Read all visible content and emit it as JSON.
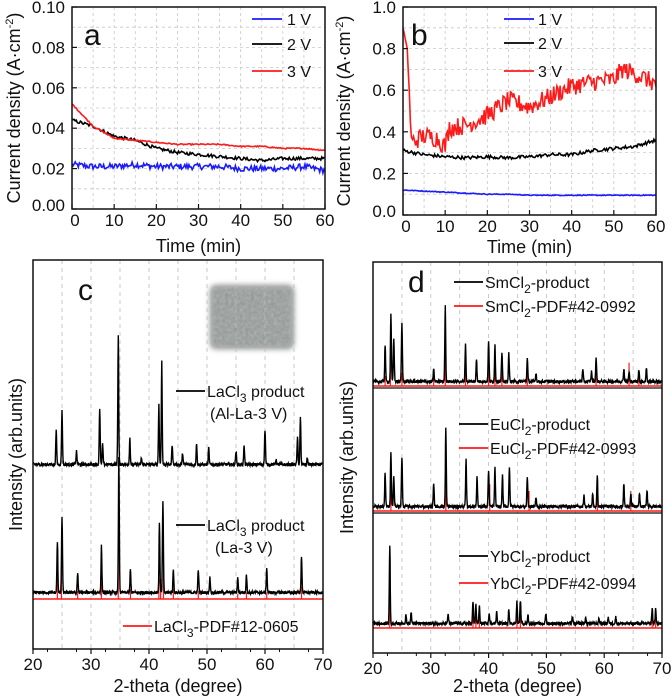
{
  "chart_data": [
    {
      "panel": "a",
      "type": "line",
      "xlabel": "Time (min)",
      "ylabel": "Current density (A·cm⁻²)",
      "ylabel_parts": {
        "main": "Current density (A·cm",
        "sup": "-2",
        "end": ")"
      },
      "xlim": [
        0,
        60
      ],
      "ylim": [
        0,
        0.1
      ],
      "xticks": [
        "0",
        "10",
        "20",
        "30",
        "40",
        "50",
        "60"
      ],
      "yticks": [
        "0.00",
        "0.02",
        "0.04",
        "0.06",
        "0.08",
        "0.10"
      ],
      "grid": true,
      "legend_position": "top-right",
      "x": [
        0,
        5,
        10,
        15,
        20,
        25,
        30,
        35,
        40,
        45,
        50,
        55,
        60
      ],
      "series": [
        {
          "name": "1 V",
          "color": "#1a1aff",
          "values": [
            0.022,
            0.021,
            0.021,
            0.022,
            0.021,
            0.021,
            0.021,
            0.021,
            0.02,
            0.02,
            0.02,
            0.021,
            0.019
          ]
        },
        {
          "name": "2 V",
          "color": "#000000",
          "values": [
            0.044,
            0.041,
            0.036,
            0.034,
            0.03,
            0.028,
            0.027,
            0.026,
            0.025,
            0.024,
            0.025,
            0.025,
            0.025
          ]
        },
        {
          "name": "3 V",
          "color": "#ff1a1a",
          "values": [
            0.052,
            0.041,
            0.035,
            0.034,
            0.033,
            0.032,
            0.032,
            0.032,
            0.031,
            0.031,
            0.03,
            0.03,
            0.029
          ]
        }
      ]
    },
    {
      "panel": "b",
      "type": "line",
      "xlabel": "Time (min)",
      "ylabel": "Current density (A·cm⁻²)",
      "ylabel_parts": {
        "main": "Current density (A·cm",
        "sup": "-2",
        "end": ")"
      },
      "xlim": [
        0,
        60
      ],
      "ylim": [
        0,
        1.0
      ],
      "xticks": [
        "0",
        "10",
        "20",
        "30",
        "40",
        "50",
        "60"
      ],
      "yticks": [
        "0.0",
        "0.2",
        "0.4",
        "0.6",
        "0.8",
        "1.0"
      ],
      "grid": true,
      "legend_position": "top-center",
      "series": [
        {
          "name": "1 V",
          "color": "#1a1aff",
          "x": [
            0,
            5,
            10,
            15,
            20,
            25,
            30,
            35,
            40,
            45,
            50,
            55,
            60
          ],
          "values": [
            0.12,
            0.115,
            0.11,
            0.105,
            0.1,
            0.1,
            0.095,
            0.095,
            0.095,
            0.095,
            0.095,
            0.095,
            0.095
          ]
        },
        {
          "name": "2 V",
          "color": "#000000",
          "x": [
            0,
            5,
            10,
            15,
            20,
            25,
            30,
            35,
            40,
            45,
            50,
            55,
            60
          ],
          "values": [
            0.31,
            0.29,
            0.28,
            0.275,
            0.28,
            0.275,
            0.28,
            0.29,
            0.29,
            0.31,
            0.32,
            0.33,
            0.36
          ]
        },
        {
          "name": "3 V",
          "color": "#ff1a1a",
          "x": [
            0,
            1,
            2,
            5,
            8,
            10,
            11,
            15,
            20,
            25,
            30,
            35,
            40,
            45,
            50,
            52,
            55,
            60
          ],
          "values": [
            0.9,
            0.8,
            0.35,
            0.38,
            0.37,
            0.33,
            0.42,
            0.43,
            0.48,
            0.55,
            0.52,
            0.57,
            0.62,
            0.64,
            0.65,
            0.7,
            0.68,
            0.63
          ]
        }
      ]
    },
    {
      "panel": "c",
      "type": "line",
      "xlabel": "2-theta (degree)",
      "ylabel": "Intensity (arb.units)",
      "xlim": [
        20,
        70
      ],
      "xticks": [
        "20",
        "30",
        "40",
        "50",
        "60",
        "70"
      ],
      "grid": true,
      "spectra": [
        {
          "name": "LaCl3 product (Al-La-3 V)",
          "label": {
            "main": "LaCl",
            "sub": "3",
            "rest": " product",
            "line2": "(Al-La-3 V)"
          },
          "color": "#000000",
          "peaks": [
            [
              24.0,
              100
            ],
            [
              25.0,
              160
            ],
            [
              27.5,
              40
            ],
            [
              31.5,
              170
            ],
            [
              32.0,
              60
            ],
            [
              34.7,
              390
            ],
            [
              36.7,
              80
            ],
            [
              38.7,
              20
            ],
            [
              41.7,
              180
            ],
            [
              42.2,
              310
            ],
            [
              44.0,
              60
            ],
            [
              45.8,
              35
            ],
            [
              48.2,
              65
            ],
            [
              50.3,
              50
            ],
            [
              55.0,
              40
            ],
            [
              56.4,
              55
            ],
            [
              60.0,
              105
            ],
            [
              61.9,
              15
            ],
            [
              65.6,
              80
            ],
            [
              66.1,
              140
            ],
            [
              67.3,
              20
            ]
          ]
        },
        {
          "name": "LaCl3 product (La-3 V)",
          "label": {
            "main": "LaCl",
            "sub": "3",
            "rest": " product",
            "line2": "(La-3 V)"
          },
          "color": "#000000",
          "peaks": [
            [
              24.2,
              155
            ],
            [
              25.0,
              230
            ],
            [
              27.7,
              60
            ],
            [
              31.8,
              140
            ],
            [
              34.8,
              410
            ],
            [
              36.8,
              70
            ],
            [
              41.8,
              210
            ],
            [
              42.4,
              275
            ],
            [
              44.2,
              70
            ],
            [
              48.5,
              70
            ],
            [
              50.5,
              45
            ],
            [
              55.3,
              45
            ],
            [
              56.8,
              55
            ],
            [
              60.3,
              75
            ],
            [
              66.3,
              110
            ]
          ],
          "reference": {
            "name": "LaCl3-PDF#12-0605",
            "label": {
              "main": "LaCl",
              "sub": "3",
              "rest": "-PDF#12-0605"
            },
            "color": "#ff1a1a",
            "sticks": [
              [
                24.2,
                70
              ],
              [
                24.9,
                95
              ],
              [
                27.7,
                25
              ],
              [
                31.8,
                50
              ],
              [
                34.7,
                135
              ],
              [
                36.8,
                30
              ],
              [
                41.7,
                60
              ],
              [
                42.0,
                60
              ],
              [
                42.5,
                100
              ],
              [
                44.2,
                30
              ],
              [
                48.5,
                25
              ],
              [
                55.3,
                15
              ],
              [
                56.8,
                20
              ],
              [
                60.3,
                20
              ],
              [
                66.3,
                35
              ]
            ]
          }
        }
      ]
    },
    {
      "panel": "d",
      "type": "line",
      "xlabel": "2-theta (degree)",
      "ylabel": "Intensity (arb.units)",
      "xlim": [
        20,
        70
      ],
      "xticks": [
        "20",
        "30",
        "40",
        "50",
        "60",
        "70"
      ],
      "grid": true,
      "spectra": [
        {
          "name": "SmCl2-product",
          "label": {
            "main": "SmCl",
            "sub": "2",
            "rest": "-product"
          },
          "color": "#000000",
          "peaks": [
            [
              22.1,
              110
            ],
            [
              23.1,
              200
            ],
            [
              23.6,
              130
            ],
            [
              25.0,
              180
            ],
            [
              30.5,
              35
            ],
            [
              32.5,
              230
            ],
            [
              36.0,
              110
            ],
            [
              37.9,
              70
            ],
            [
              40.0,
              120
            ],
            [
              41.1,
              110
            ],
            [
              42.3,
              85
            ],
            [
              43.5,
              85
            ],
            [
              46.7,
              70
            ],
            [
              48.2,
              25
            ],
            [
              56.3,
              35
            ],
            [
              57.8,
              30
            ],
            [
              58.6,
              70
            ],
            [
              63.4,
              40
            ],
            [
              64.3,
              30
            ],
            [
              66.0,
              35
            ],
            [
              67.3,
              40
            ]
          ],
          "reference": {
            "name": "SmCl2-PDF#42-0992",
            "label": {
              "main": "SmCl",
              "sub": "2",
              "rest": "-PDF#42-0992"
            },
            "color": "#ff1a1a",
            "sticks": [
              [
                22.1,
                30
              ],
              [
                23.0,
                90
              ],
              [
                25.0,
                40
              ],
              [
                30.5,
                40
              ],
              [
                32.5,
                75
              ],
              [
                36.0,
                40
              ],
              [
                40.0,
                120
              ],
              [
                41.1,
                60
              ],
              [
                42.3,
                40
              ],
              [
                46.7,
                60
              ],
              [
                58.6,
                70
              ],
              [
                64.3,
                70
              ],
              [
                66.0,
                30
              ]
            ]
          }
        },
        {
          "name": "EuCl2-product",
          "label": {
            "main": "EuCl",
            "sub": "2",
            "rest": "-product"
          },
          "color": "#000000",
          "peaks": [
            [
              22.1,
              100
            ],
            [
              23.1,
              160
            ],
            [
              23.6,
              90
            ],
            [
              25.0,
              150
            ],
            [
              30.5,
              70
            ],
            [
              32.6,
              235
            ],
            [
              36.1,
              140
            ],
            [
              38.0,
              95
            ],
            [
              40.0,
              110
            ],
            [
              41.1,
              120
            ],
            [
              42.4,
              95
            ],
            [
              43.6,
              120
            ],
            [
              46.7,
              90
            ],
            [
              48.2,
              25
            ],
            [
              56.5,
              35
            ],
            [
              58.0,
              40
            ],
            [
              58.8,
              90
            ],
            [
              63.4,
              70
            ],
            [
              64.6,
              40
            ],
            [
              66.1,
              40
            ],
            [
              67.4,
              50
            ]
          ],
          "reference": {
            "name": "EuCl2-PDF#42-0993",
            "label": {
              "main": "EuCl",
              "sub": "2",
              "rest": "-PDF#42-0993"
            },
            "color": "#ff1a1a",
            "sticks": [
              [
                23.1,
                60
              ],
              [
                32.6,
                90
              ],
              [
                40.2,
                80
              ],
              [
                47.0,
                60
              ],
              [
                58.8,
                50
              ],
              [
                64.6,
                60
              ]
            ]
          }
        },
        {
          "name": "YbCl2-product",
          "label": {
            "main": "YbCl",
            "sub": "2",
            "rest": "-product"
          },
          "color": "#000000",
          "peaks": [
            [
              22.9,
              235
            ],
            [
              25.7,
              30
            ],
            [
              26.6,
              35
            ],
            [
              33.0,
              30
            ],
            [
              37.3,
              65
            ],
            [
              37.8,
              55
            ],
            [
              38.4,
              55
            ],
            [
              40.1,
              30
            ],
            [
              41.4,
              35
            ],
            [
              43.5,
              45
            ],
            [
              44.9,
              65
            ],
            [
              45.5,
              70
            ],
            [
              46.8,
              25
            ],
            [
              49.9,
              30
            ],
            [
              54.5,
              20
            ],
            [
              56.8,
              15
            ],
            [
              59.1,
              15
            ],
            [
              60.7,
              20
            ],
            [
              62.0,
              20
            ],
            [
              68.3,
              45
            ],
            [
              68.9,
              45
            ]
          ],
          "reference": {
            "name": "YbCl2-PDF#42-0994",
            "label": {
              "main": "YbCl",
              "sub": "2",
              "rest": "-PDF#42-0994"
            },
            "color": "#ff1a1a",
            "sticks": [
              [
                22.9,
                125
              ],
              [
                37.3,
                55
              ],
              [
                37.8,
                55
              ],
              [
                38.4,
                55
              ],
              [
                44.9,
                60
              ],
              [
                45.5,
                60
              ],
              [
                68.3,
                45
              ],
              [
                68.9,
                45
              ]
            ]
          }
        }
      ]
    }
  ]
}
